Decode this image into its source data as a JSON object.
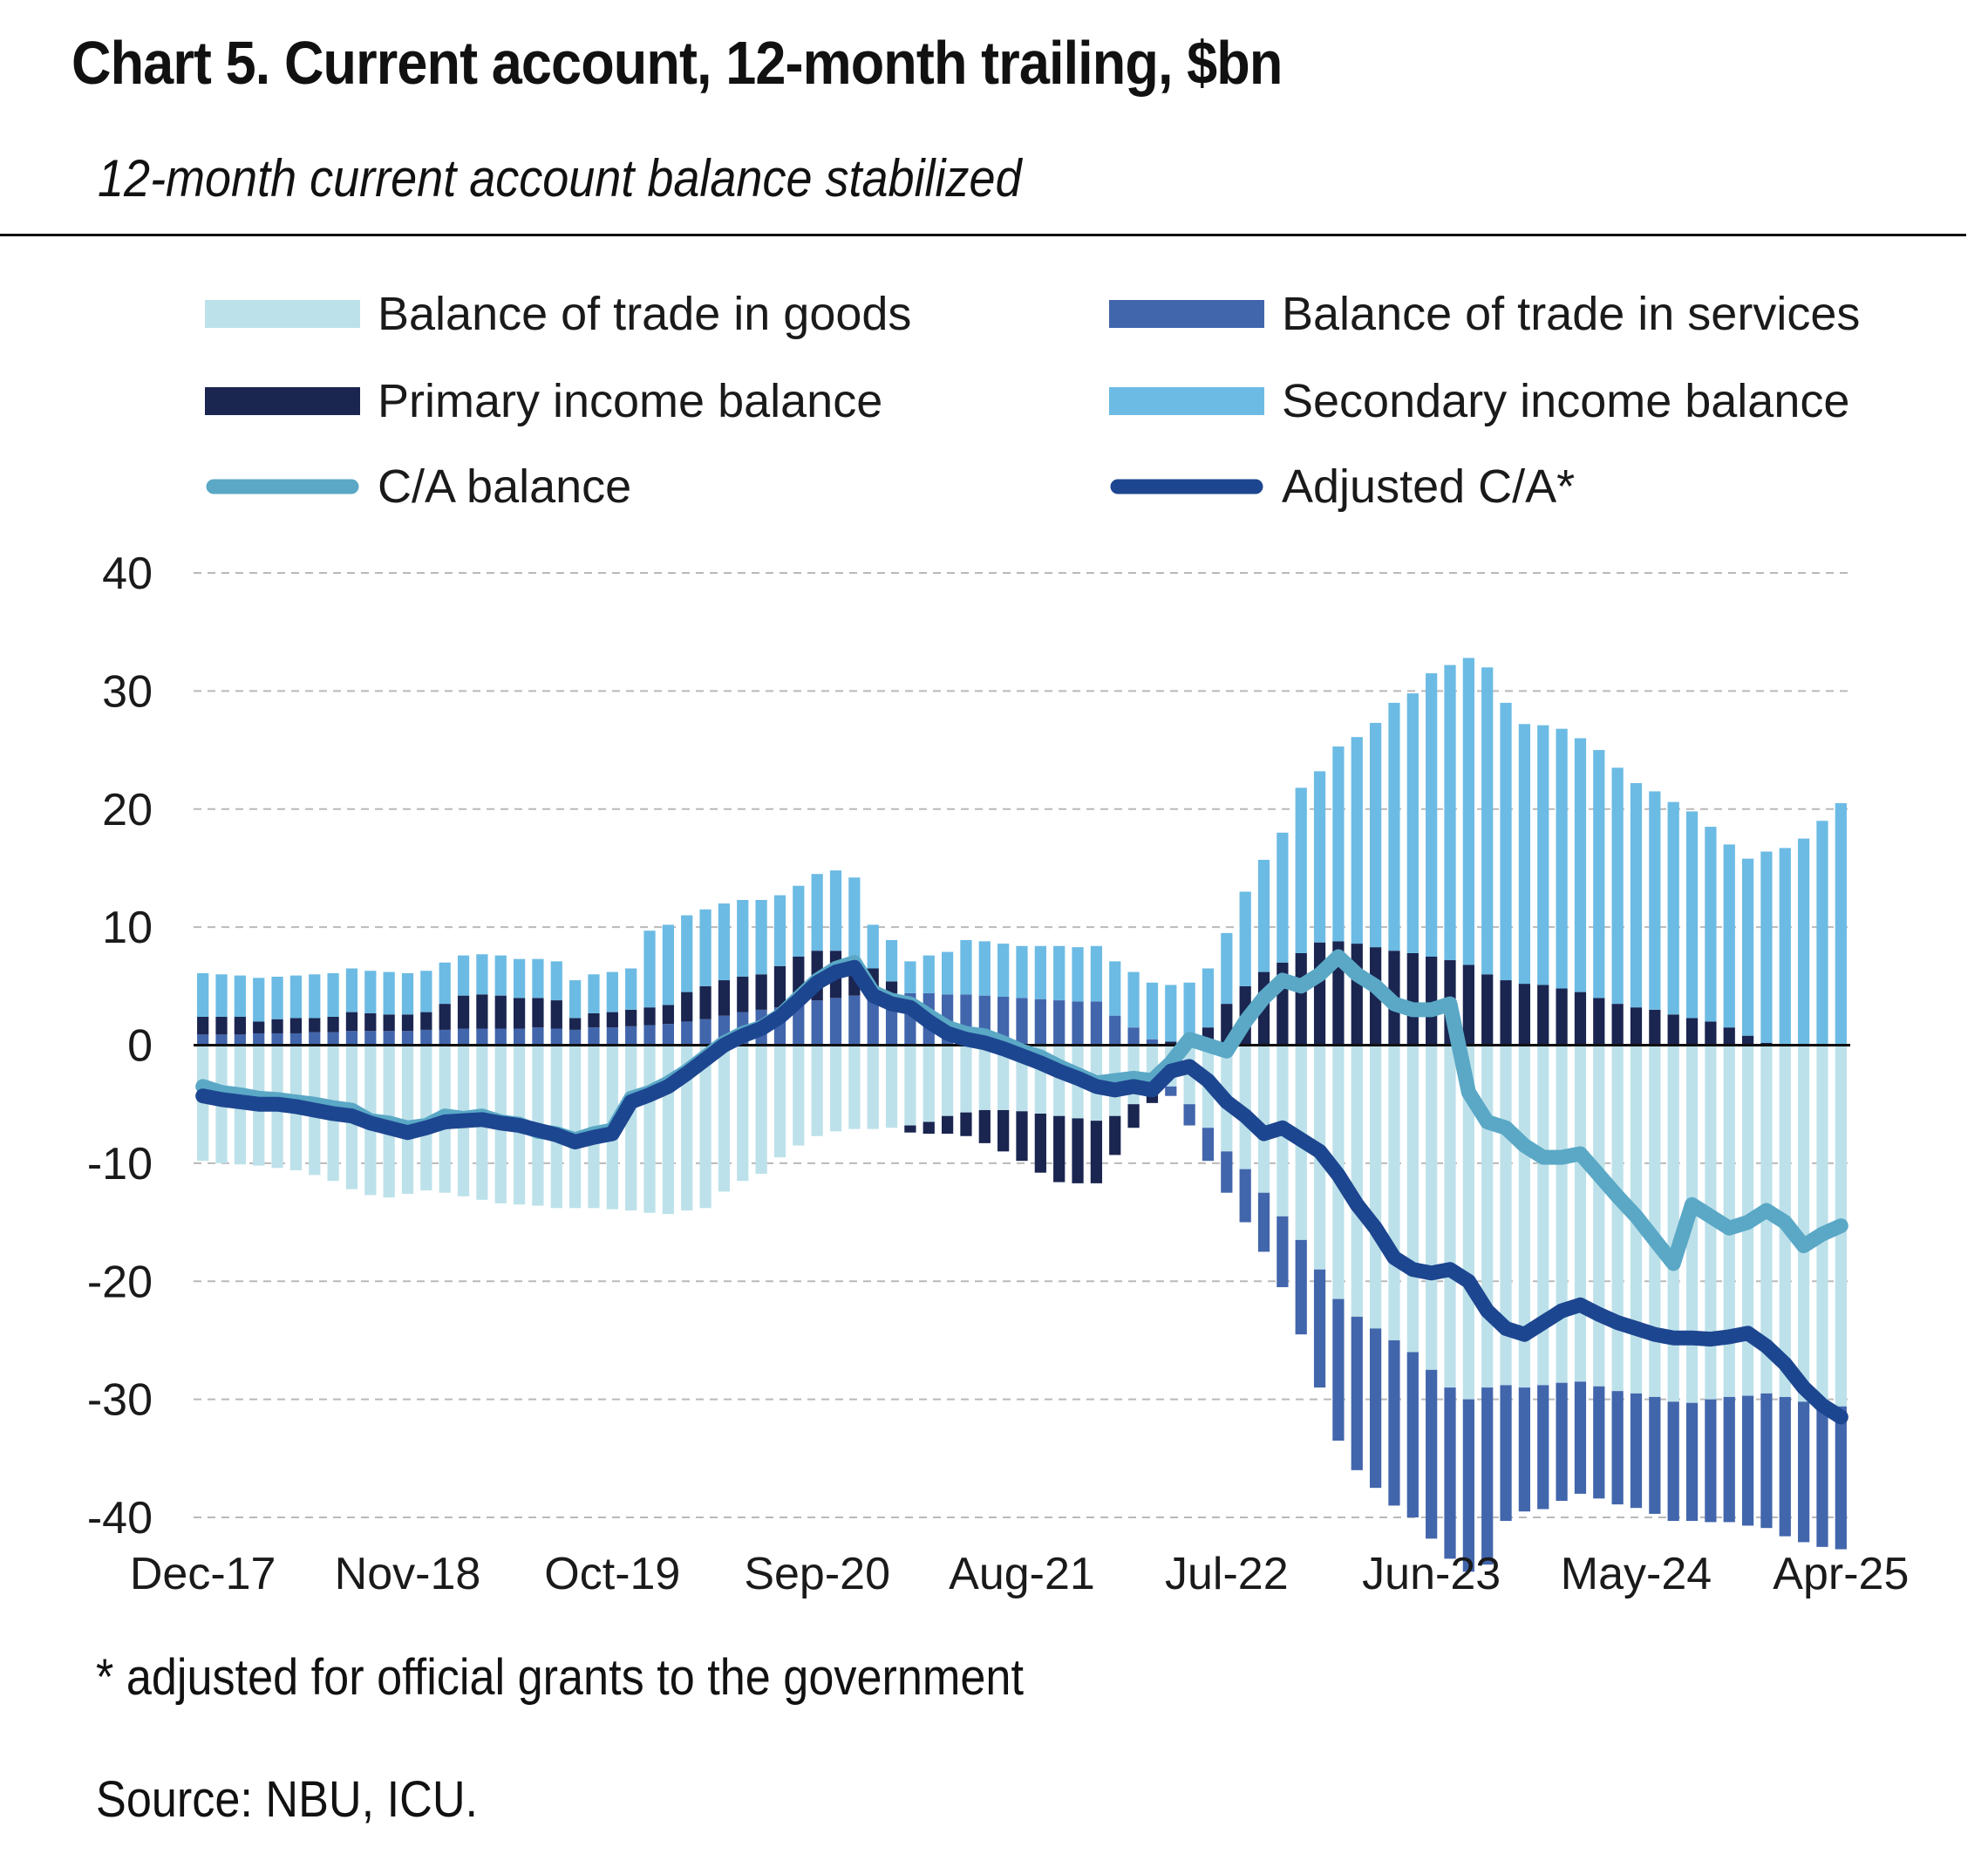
{
  "chart_data": {
    "type": "bar",
    "stacked": true,
    "title": "Chart 5. Current account, 12-month trailing, $bn",
    "subtitle": "12-month current account balance stabilized",
    "ylim": [
      -40,
      40
    ],
    "yticks": [
      40,
      30,
      20,
      10,
      0,
      -10,
      -20,
      -30,
      -40
    ],
    "grid": true,
    "legend_position": "top",
    "x_tick_labels": [
      "Dec-17",
      "Nov-18",
      "Oct-19",
      "Sep-20",
      "Aug-21",
      "Jul-22",
      "Jun-23",
      "May-24",
      "Apr-25"
    ],
    "x_tick_step": 11,
    "x": [
      "Dec-17",
      "Jan-18",
      "Feb-18",
      "Mar-18",
      "Apr-18",
      "May-18",
      "Jun-18",
      "Jul-18",
      "Aug-18",
      "Sep-18",
      "Oct-18",
      "Nov-18",
      "Dec-18",
      "Jan-19",
      "Feb-19",
      "Mar-19",
      "Apr-19",
      "May-19",
      "Jun-19",
      "Jul-19",
      "Aug-19",
      "Sep-19",
      "Oct-19",
      "Nov-19",
      "Dec-19",
      "Jan-20",
      "Feb-20",
      "Mar-20",
      "Apr-20",
      "May-20",
      "Jun-20",
      "Jul-20",
      "Aug-20",
      "Sep-20",
      "Oct-20",
      "Nov-20",
      "Dec-20",
      "Jan-21",
      "Feb-21",
      "Mar-21",
      "Apr-21",
      "May-21",
      "Jun-21",
      "Jul-21",
      "Aug-21",
      "Sep-21",
      "Oct-21",
      "Nov-21",
      "Dec-21",
      "Jan-22",
      "Feb-22",
      "Mar-22",
      "Apr-22",
      "May-22",
      "Jun-22",
      "Jul-22",
      "Aug-22",
      "Sep-22",
      "Oct-22",
      "Nov-22",
      "Dec-22",
      "Jan-23",
      "Feb-23",
      "Mar-23",
      "Apr-23",
      "May-23",
      "Jun-23",
      "Jul-23",
      "Aug-23",
      "Sep-23",
      "Oct-23",
      "Nov-23",
      "Dec-23",
      "Jan-24",
      "Feb-24",
      "Mar-24",
      "Apr-24",
      "May-24",
      "Jun-24",
      "Jul-24",
      "Aug-24",
      "Sep-24",
      "Oct-24",
      "Nov-24",
      "Dec-24",
      "Jan-25",
      "Feb-25",
      "Mar-25",
      "Apr-25"
    ],
    "series": [
      {
        "name": "Balance of trade in goods",
        "kind": "bar",
        "color": "#bde1ea",
        "values": [
          -9.8,
          -10.0,
          -10.1,
          -10.2,
          -10.4,
          -10.6,
          -11.0,
          -11.5,
          -12.2,
          -12.7,
          -12.9,
          -12.6,
          -12.3,
          -12.5,
          -12.8,
          -13.1,
          -13.4,
          -13.5,
          -13.6,
          -13.8,
          -13.8,
          -13.8,
          -13.9,
          -14.0,
          -14.2,
          -14.3,
          -14.0,
          -13.8,
          -12.4,
          -11.5,
          -10.9,
          -9.5,
          -8.5,
          -7.7,
          -7.3,
          -7.1,
          -7.1,
          -7.0,
          -6.8,
          -6.5,
          -6.0,
          -5.7,
          -5.5,
          -5.5,
          -5.6,
          -5.8,
          -6.0,
          -6.2,
          -6.4,
          -6.0,
          -5.0,
          -4.2,
          -3.5,
          -5.0,
          -7.0,
          -9.0,
          -10.5,
          -12.5,
          -14.5,
          -16.5,
          -19.0,
          -21.5,
          -23.0,
          -24.0,
          -25.0,
          -26.0,
          -27.5,
          -29.0,
          -30.0,
          -29.0,
          -28.8,
          -29.0,
          -28.8,
          -28.6,
          -28.5,
          -28.9,
          -29.3,
          -29.5,
          -29.8,
          -30.2,
          -30.3,
          -30.0,
          -29.8,
          -29.7,
          -29.5,
          -29.8,
          -30.2,
          -30.5,
          -30.6
        ]
      },
      {
        "name": "Balance of trade in services",
        "kind": "bar",
        "color": "#4266ac",
        "values": [
          0.9,
          0.9,
          0.9,
          1.0,
          1.0,
          1.0,
          1.1,
          1.1,
          1.2,
          1.2,
          1.2,
          1.2,
          1.3,
          1.3,
          1.4,
          1.4,
          1.4,
          1.4,
          1.5,
          1.4,
          1.3,
          1.5,
          1.5,
          1.6,
          1.7,
          1.8,
          2.0,
          2.2,
          2.5,
          2.8,
          3.0,
          3.2,
          3.5,
          3.8,
          4.0,
          4.2,
          4.3,
          4.4,
          4.4,
          4.4,
          4.3,
          4.3,
          4.2,
          4.1,
          4.0,
          3.9,
          3.8,
          3.7,
          3.7,
          2.5,
          1.5,
          0.5,
          -0.8,
          -1.8,
          -2.8,
          -3.5,
          -4.5,
          -5.0,
          -6.0,
          -8.0,
          -10.0,
          -12.0,
          -13.0,
          -13.5,
          -14.0,
          -14.0,
          -14.3,
          -14.5,
          -14.6,
          -15.0,
          -11.5,
          -10.5,
          -10.5,
          -10.0,
          -9.5,
          -9.5,
          -9.6,
          -9.7,
          -9.9,
          -10.1,
          -10.0,
          -10.4,
          -10.6,
          -11.0,
          -11.4,
          -11.8,
          -11.9,
          -12.0,
          -12.1
        ]
      },
      {
        "name": "Primary income balance",
        "kind": "bar",
        "color": "#1a2550",
        "values": [
          1.5,
          1.5,
          1.5,
          1.0,
          1.2,
          1.3,
          1.2,
          1.3,
          1.6,
          1.5,
          1.4,
          1.4,
          1.5,
          2.2,
          2.8,
          2.9,
          2.8,
          2.6,
          2.5,
          2.4,
          1.0,
          1.2,
          1.3,
          1.4,
          1.5,
          1.6,
          2.5,
          2.8,
          3.0,
          3.0,
          3.0,
          3.5,
          4.0,
          4.2,
          4.0,
          3.0,
          2.2,
          1.0,
          -0.6,
          -1.0,
          -1.5,
          -2.0,
          -2.8,
          -3.5,
          -4.2,
          -5.0,
          -5.6,
          -5.5,
          -5.3,
          -3.3,
          -2.0,
          -0.7,
          0.3,
          0.5,
          1.5,
          3.5,
          5.0,
          6.2,
          7.0,
          7.8,
          8.7,
          8.8,
          8.6,
          8.3,
          8.0,
          7.8,
          7.5,
          7.2,
          6.8,
          6.0,
          5.5,
          5.2,
          5.1,
          4.8,
          4.5,
          4.0,
          3.5,
          3.2,
          3.0,
          2.6,
          2.3,
          2.0,
          1.5,
          0.8,
          0.2,
          0.0,
          0.0,
          0.0,
          0.0
        ]
      },
      {
        "name": "Secondary income balance",
        "kind": "bar",
        "color": "#6cbbe4",
        "values": [
          3.7,
          3.6,
          3.5,
          3.7,
          3.6,
          3.6,
          3.7,
          3.7,
          3.7,
          3.6,
          3.6,
          3.5,
          3.5,
          3.5,
          3.4,
          3.4,
          3.4,
          3.3,
          3.3,
          3.3,
          3.2,
          3.3,
          3.4,
          3.5,
          6.5,
          6.8,
          6.5,
          6.5,
          6.5,
          6.5,
          6.3,
          6.0,
          6.0,
          6.5,
          6.8,
          7.0,
          3.7,
          3.5,
          2.7,
          3.2,
          3.6,
          4.6,
          4.6,
          4.5,
          4.4,
          4.5,
          4.6,
          4.6,
          4.7,
          4.6,
          4.7,
          4.8,
          4.8,
          4.8,
          5.0,
          6.0,
          8.0,
          9.5,
          11.0,
          14.0,
          14.5,
          16.5,
          17.5,
          19.0,
          21.0,
          22.0,
          24.0,
          25.0,
          26.0,
          26.0,
          23.5,
          22.0,
          22.0,
          22.0,
          21.5,
          21.0,
          20.0,
          19.0,
          18.5,
          18.0,
          17.5,
          16.5,
          15.5,
          15.0,
          16.2,
          16.7,
          17.5,
          19.0,
          20.5
        ]
      },
      {
        "name": "C/A balance",
        "kind": "line",
        "color": "#5aa8c6",
        "values": [
          -3.5,
          -4.0,
          -4.2,
          -4.5,
          -4.6,
          -4.8,
          -5.0,
          -5.3,
          -5.5,
          -6.4,
          -6.6,
          -7.0,
          -6.8,
          -6.0,
          -6.2,
          -6.0,
          -6.5,
          -6.7,
          -7.3,
          -7.5,
          -8.0,
          -7.5,
          -7.2,
          -4.5,
          -4.0,
          -3.2,
          -2.2,
          -1.0,
          0.2,
          1.0,
          1.5,
          2.5,
          4.0,
          5.5,
          6.5,
          7.0,
          4.5,
          3.8,
          3.5,
          2.5,
          1.5,
          1.0,
          0.8,
          0.2,
          -0.5,
          -1.0,
          -1.8,
          -2.5,
          -3.2,
          -3.0,
          -2.8,
          -3.0,
          -1.5,
          0.5,
          0.0,
          -0.5,
          2.0,
          4.0,
          5.5,
          5.0,
          6.0,
          7.5,
          6.0,
          5.0,
          3.5,
          3.0,
          3.0,
          3.5,
          -4.0,
          -6.5,
          -7.0,
          -8.5,
          -9.5,
          -9.5,
          -9.2,
          -11.0,
          -12.8,
          -14.5,
          -16.5,
          -18.5,
          -13.5,
          -14.5,
          -15.5,
          -15.0,
          -14.0,
          -15.0,
          -17.0,
          -16.0,
          -15.3
        ]
      },
      {
        "name": "Adjusted C/A*",
        "kind": "line",
        "color": "#1d4690",
        "values": [
          -4.3,
          -4.6,
          -4.8,
          -5.0,
          -5.0,
          -5.2,
          -5.5,
          -5.8,
          -6.0,
          -6.6,
          -7.0,
          -7.4,
          -7.0,
          -6.5,
          -6.4,
          -6.3,
          -6.6,
          -6.8,
          -7.2,
          -7.6,
          -8.2,
          -7.8,
          -7.5,
          -4.8,
          -4.2,
          -3.5,
          -2.4,
          -1.2,
          0.0,
          0.8,
          1.4,
          2.4,
          3.8,
          5.3,
          6.2,
          6.6,
          4.2,
          3.5,
          3.2,
          2.0,
          1.0,
          0.5,
          0.2,
          -0.3,
          -0.9,
          -1.5,
          -2.2,
          -2.8,
          -3.5,
          -3.8,
          -3.5,
          -3.8,
          -2.2,
          -1.8,
          -3.0,
          -4.8,
          -6.0,
          -7.5,
          -7.0,
          -8.0,
          -9.0,
          -11.0,
          -13.5,
          -15.5,
          -18.0,
          -19.0,
          -19.3,
          -19.0,
          -20.0,
          -22.5,
          -24.0,
          -24.5,
          -23.5,
          -22.5,
          -22.0,
          -22.8,
          -23.5,
          -24.0,
          -24.5,
          -24.8,
          -24.8,
          -24.9,
          -24.7,
          -24.4,
          -25.5,
          -27.0,
          -29.0,
          -30.5,
          -31.5
        ]
      }
    ],
    "footnote": "* adjusted for official grants to the government",
    "source": "Source: NBU, ICU."
  }
}
